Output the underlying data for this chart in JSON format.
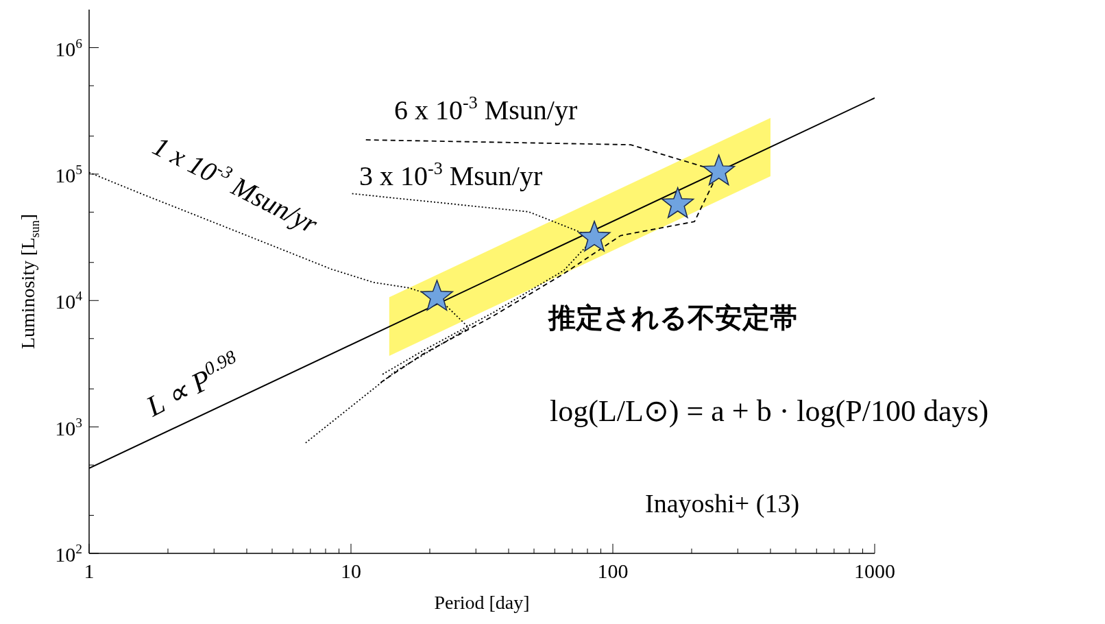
{
  "chart_data": {
    "type": "line",
    "xlabel": "Period [day]",
    "ylabel": "Luminosity [L$_{sun}$]",
    "xlim": [
      1,
      1000
    ],
    "ylim": [
      100,
      2000000
    ],
    "xticks": [
      1,
      {
        "value": 2,
        "label": null
      },
      {
        "value": 3,
        "label": null
      },
      {
        "value": 4,
        "label": null
      },
      {
        "value": 5,
        "label": null
      },
      {
        "value": 6,
        "label": null
      },
      {
        "value": 7,
        "label": null
      },
      {
        "value": 8,
        "label": null
      },
      {
        "value": 9,
        "label": null
      },
      10,
      {
        "value": 20,
        "label": null
      },
      {
        "value": 30,
        "label": null
      },
      {
        "value": 40,
        "label": null
      },
      {
        "value": 50,
        "label": null
      },
      {
        "value": 60,
        "label": null
      },
      {
        "value": 70,
        "label": null
      },
      {
        "value": 80,
        "label": null
      },
      {
        "value": 90,
        "label": null
      },
      100,
      {
        "value": 200,
        "label": null
      },
      {
        "value": 300,
        "label": null
      },
      {
        "value": 400,
        "label": null
      },
      {
        "value": 500,
        "label": null
      },
      {
        "value": 600,
        "label": null
      },
      {
        "value": 700,
        "label": null
      },
      {
        "value": 800,
        "label": null
      },
      {
        "value": 900,
        "label": null
      },
      1000
    ],
    "yticks": [
      {
        "value": 100,
        "label": "10$^{2}$"
      },
      {
        "value": 200,
        "label": null
      },
      {
        "value": 500,
        "label": null
      },
      {
        "value": 1000,
        "label": "10$^{3}$"
      },
      {
        "value": 2000,
        "label": null
      },
      {
        "value": 5000,
        "label": null
      },
      {
        "value": 10000,
        "label": "10$^{4}$"
      },
      {
        "value": 20000,
        "label": null
      },
      {
        "value": 50000,
        "label": null
      },
      {
        "value": 100000,
        "label": "10$^{5}$"
      },
      {
        "value": 200000,
        "label": null
      },
      {
        "value": 500000,
        "label": null
      },
      {
        "value": 1000000,
        "label": "10$^{6}$"
      }
    ],
    "log": "xy",
    "grid": false,
    "legend": false,
    "series": [
      {
        "name": "L ∝ P$^{0.98}$",
        "color": "#000000",
        "line_style": "solid",
        "marker": "none",
        "x": [
          1,
          14,
          400,
          1000
        ],
        "values": [
          472,
          6210,
          163600,
          400000
        ],
        "lower": [
          null,
          3650,
          96200,
          null
        ],
        "upper": [
          null,
          10600,
          278000,
          null
        ]
      },
      {
        "name": "1 x 10$^{-3}$ Msun/yr",
        "color": "#000000",
        "line_style": "dotted",
        "marker": "none",
        "x": [
          1,
          1.58,
          2.94,
          5.46,
          8.42,
          12.2,
          16.6,
          21.3,
          28.2,
          14.7,
          6.7
        ],
        "values": [
          103000,
          70000,
          42100,
          25300,
          17700,
          13900,
          12600,
          10700,
          6090,
          2730,
          746
        ]
      },
      {
        "name": "3 x 10$^{-3}$ Msun/yr",
        "color": "#000000",
        "line_style": "dotted",
        "marker": "none",
        "x": [
          10.1,
          47.7,
          85,
          65,
          35,
          18.8,
          13
        ],
        "values": [
          70000,
          50300,
          31400,
          17300,
          8050,
          4000,
          2560
        ]
      },
      {
        "name": "6 x 10$^{-3}$ Msun/yr",
        "color": "#000000",
        "line_style": "dashed",
        "marker": "none",
        "x": [
          11.4,
          117,
          254,
          205,
          107,
          65,
          35,
          18.8,
          13
        ],
        "values": [
          186600,
          170600,
          105000,
          42100,
          32600,
          16300,
          7560,
          3760,
          2250
        ]
      },
      {
        "type": "scatter",
        "color": "#6fa3e0",
        "marker": "star",
        "x": [
          21.3,
          85,
          177,
          254
        ],
        "values": [
          10700,
          31400,
          57800,
          105000
        ]
      }
    ],
    "annotations": [
      "推定される不安定帯",
      "log(L/L⊙) = a + b · log(P/100 days)",
      "Inayoshi+ (13)"
    ]
  }
}
